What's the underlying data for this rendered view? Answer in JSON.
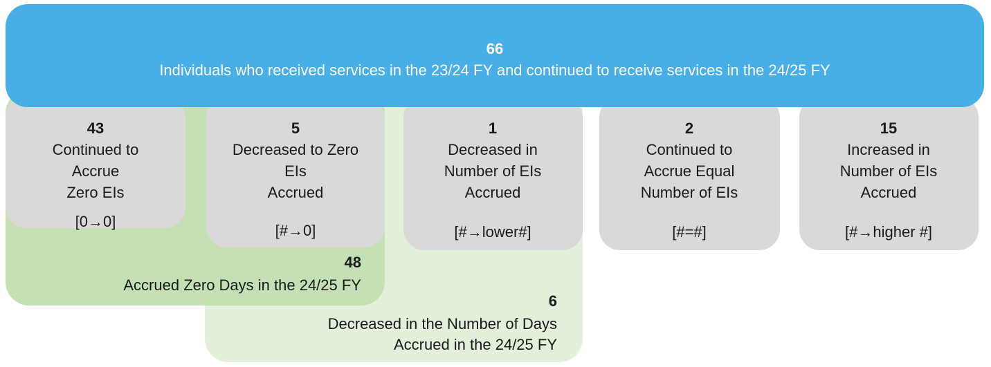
{
  "header": {
    "count": "66",
    "label": "Individuals who received services in the 23/24 FY and continued to receive services in the 24/25 FY"
  },
  "boxes": [
    {
      "count": "43",
      "lines": [
        "Continued to",
        "Accrue",
        "Zero EIs"
      ],
      "code": "[0→0]"
    },
    {
      "count": "5",
      "lines": [
        "Decreased to Zero",
        "EIs",
        "Accrued"
      ],
      "code": "[#→0]"
    },
    {
      "count": "1",
      "lines": [
        "Decreased in",
        "Number of EIs",
        "Accrued"
      ],
      "code": "[#→lower#]"
    },
    {
      "count": "2",
      "lines": [
        "Continued to",
        "Accrue Equal",
        "Number of EIs"
      ],
      "code": "[#=#]"
    },
    {
      "count": "15",
      "lines": [
        "Increased in",
        "Number of EIs",
        "Accrued"
      ],
      "code": "[#→higher #]"
    }
  ],
  "groups": [
    {
      "count": "48",
      "lines": [
        "Accrued Zero Days in the 24/25 FY"
      ]
    },
    {
      "count": "6",
      "lines": [
        "Decreased in the Number of Days",
        "Accrued in the 24/25 FY"
      ]
    }
  ]
}
